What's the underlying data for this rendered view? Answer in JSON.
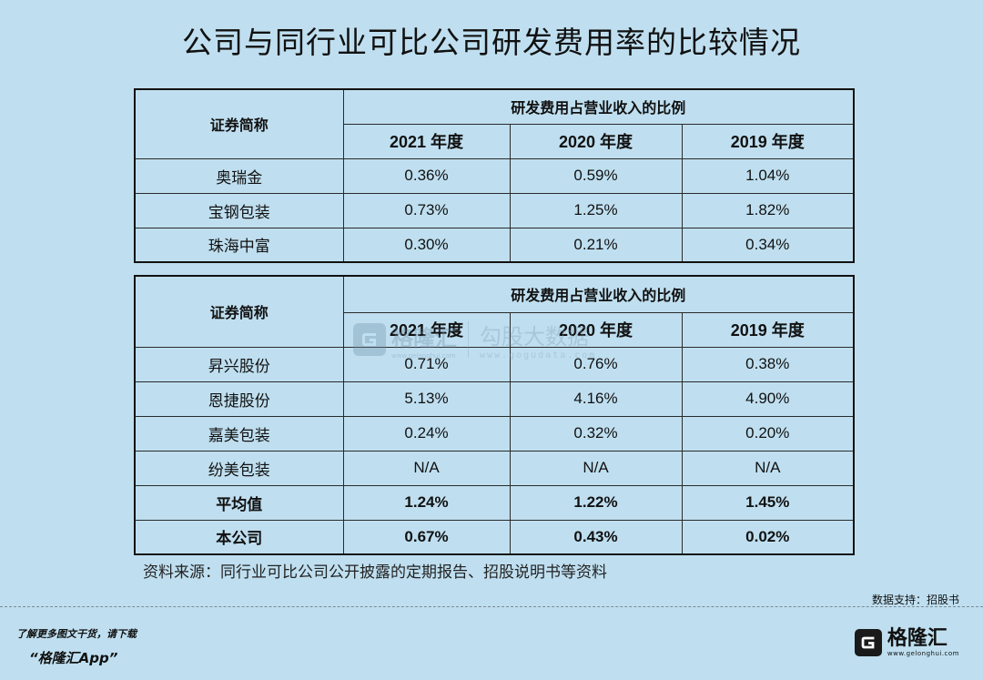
{
  "title": "公司与同行业可比公司研发费用率的比较情况",
  "table1": {
    "name_header": "证券简称",
    "group_header": "研发费用占营业收入的比例",
    "years": [
      "2021 年度",
      "2020 年度",
      "2019 年度"
    ],
    "rows": [
      {
        "name": "奥瑞金",
        "values": [
          "0.36%",
          "0.59%",
          "1.04%"
        ]
      },
      {
        "name": "宝钢包装",
        "values": [
          "0.73%",
          "1.25%",
          "1.82%"
        ]
      },
      {
        "name": "珠海中富",
        "values": [
          "0.30%",
          "0.21%",
          "0.34%"
        ]
      }
    ]
  },
  "table2": {
    "name_header": "证券简称",
    "group_header": "研发费用占营业收入的比例",
    "years": [
      "2021 年度",
      "2020 年度",
      "2019 年度"
    ],
    "rows": [
      {
        "name": "昇兴股份",
        "values": [
          "0.71%",
          "0.76%",
          "0.38%"
        ]
      },
      {
        "name": "恩捷股份",
        "values": [
          "5.13%",
          "4.16%",
          "4.90%"
        ]
      },
      {
        "name": "嘉美包装",
        "values": [
          "0.24%",
          "0.32%",
          "0.20%"
        ]
      },
      {
        "name": "纷美包装",
        "values": [
          "N/A",
          "N/A",
          "N/A"
        ]
      },
      {
        "name": "平均值",
        "values": [
          "1.24%",
          "1.22%",
          "1.45%"
        ]
      },
      {
        "name": "本公司",
        "values": [
          "0.67%",
          "0.43%",
          "0.02%"
        ]
      }
    ]
  },
  "source": "资料来源：同行业可比公司公开披露的定期报告、招股说明书等资料",
  "support": "数据支持：招股书",
  "promo": {
    "line1": "了解更多图文干货，请下载",
    "line2": "“格隆汇App”"
  },
  "brand": {
    "name": "格隆汇",
    "url": "www.gelonghui.com"
  },
  "watermark": {
    "name": "格隆汇",
    "url": "www.gelonghui.com",
    "name2": "勾股大数据",
    "url2": "www.gogudata.com"
  }
}
